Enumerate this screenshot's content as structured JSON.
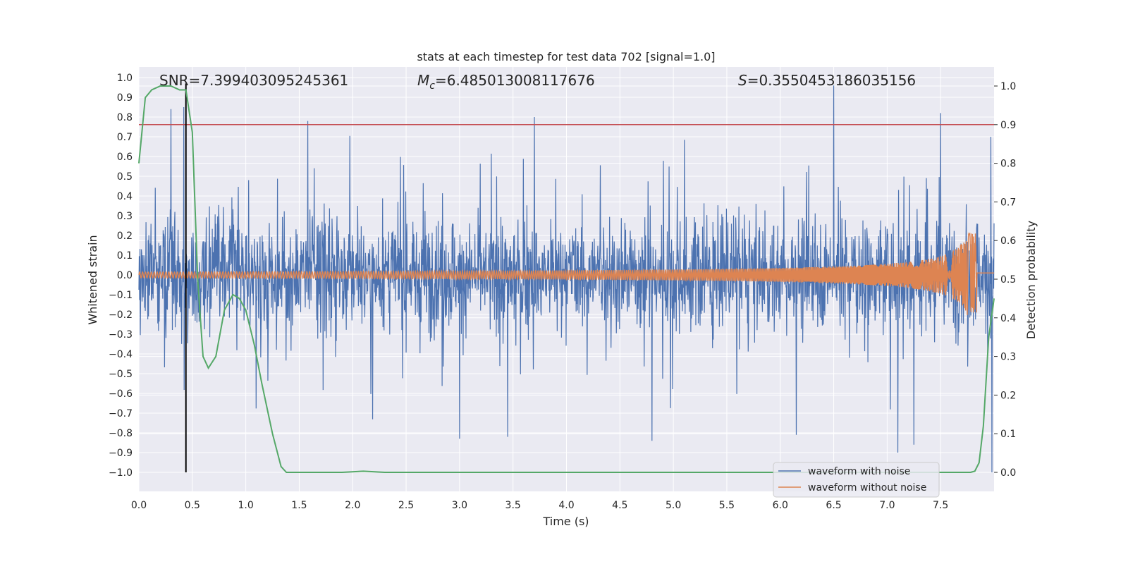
{
  "chart_data": {
    "type": "line",
    "title": "stats at each timestep for test data 702 [signal=1.0]",
    "xlabel": "Time (s)",
    "ylabel_left": "Whitened strain",
    "ylabel_right": "Detection probability",
    "xlim": [
      0.0,
      8.0
    ],
    "ylim_left": [
      -1.1,
      1.05
    ],
    "ylim_right": [
      -0.05,
      1.03
    ],
    "x_ticks": [
      "0.0",
      "0.5",
      "1.0",
      "1.5",
      "2.0",
      "2.5",
      "3.0",
      "3.5",
      "4.0",
      "4.5",
      "5.0",
      "5.5",
      "6.0",
      "6.5",
      "7.0",
      "7.5"
    ],
    "y_left_ticks": [
      "1.0",
      "0.9",
      "0.8",
      "0.7",
      "0.6",
      "0.5",
      "0.4",
      "0.3",
      "0.2",
      "0.1",
      "0.0",
      "−0.1",
      "−0.2",
      "−0.3",
      "−0.4",
      "−0.5",
      "−0.6",
      "−0.7",
      "−0.8",
      "−0.9",
      "−1.0"
    ],
    "y_right_ticks": [
      "1.0",
      "0.9",
      "0.8",
      "0.7",
      "0.6",
      "0.5",
      "0.4",
      "0.3",
      "0.2",
      "0.1",
      "0.0"
    ],
    "annotations": {
      "snr": "SNR=7.399403095245361",
      "mc_prefix": "M",
      "mc_sub": "c",
      "mc_value": "=6.485013008117676",
      "s_prefix": "S",
      "s_value": "=0.3550453186035156"
    },
    "threshold_line": {
      "axis": "right",
      "value": 0.9,
      "color": "#c44e52"
    },
    "marker_line": {
      "x": 0.44,
      "color": "#000000"
    },
    "legend": {
      "placement": "bottom-right",
      "entries": [
        {
          "label": "waveform with noise",
          "color": "#4c72b0"
        },
        {
          "label": "waveform without noise",
          "color": "#dd8452"
        }
      ]
    },
    "series": [
      {
        "name": "waveform with noise",
        "axis": "left",
        "color": "#4c72b0",
        "style": "dense-noise",
        "typical_envelope": [
          -0.45,
          0.5
        ],
        "peaks": [
          [
            0.3,
            0.84
          ],
          [
            0.42,
            0.85
          ],
          [
            1.58,
            0.78
          ],
          [
            3.7,
            0.8
          ],
          [
            4.8,
            0.81
          ],
          [
            6.5,
            0.96
          ],
          [
            7.5,
            0.82
          ],
          [
            7.97,
            0.7
          ],
          [
            3.0,
            -0.83
          ],
          [
            3.45,
            -0.82
          ],
          [
            4.8,
            -0.84
          ],
          [
            6.15,
            -0.81
          ],
          [
            7.1,
            -0.9
          ],
          [
            7.25,
            -0.86
          ],
          [
            7.98,
            -1.0
          ]
        ]
      },
      {
        "name": "waveform without noise",
        "axis": "left",
        "color": "#dd8452",
        "style": "chirp",
        "start_amplitude": 0.015,
        "peak_amplitude": 0.21,
        "merger_time": 7.83,
        "end_time": 8.0
      },
      {
        "name": "detection probability",
        "axis": "right",
        "color": "#55a868",
        "x": [
          0.0,
          0.06,
          0.12,
          0.2,
          0.3,
          0.38,
          0.44,
          0.5,
          0.55,
          0.6,
          0.65,
          0.72,
          0.8,
          0.88,
          0.94,
          1.0,
          1.08,
          1.15,
          1.25,
          1.33,
          1.38,
          1.5,
          1.9,
          2.1,
          2.3,
          3.0,
          4.0,
          5.0,
          6.0,
          7.0,
          7.6,
          7.78,
          7.82,
          7.86,
          7.9,
          7.95,
          8.0
        ],
        "y": [
          0.8,
          0.97,
          0.99,
          1.0,
          1.0,
          0.99,
          0.99,
          0.88,
          0.5,
          0.3,
          0.27,
          0.3,
          0.42,
          0.46,
          0.45,
          0.42,
          0.33,
          0.23,
          0.1,
          0.015,
          0.0,
          0.0,
          0.0,
          0.003,
          0.0,
          0.0,
          0.0,
          0.0,
          0.0,
          0.0,
          0.0,
          0.0,
          0.003,
          0.025,
          0.12,
          0.35,
          0.45
        ]
      }
    ]
  }
}
